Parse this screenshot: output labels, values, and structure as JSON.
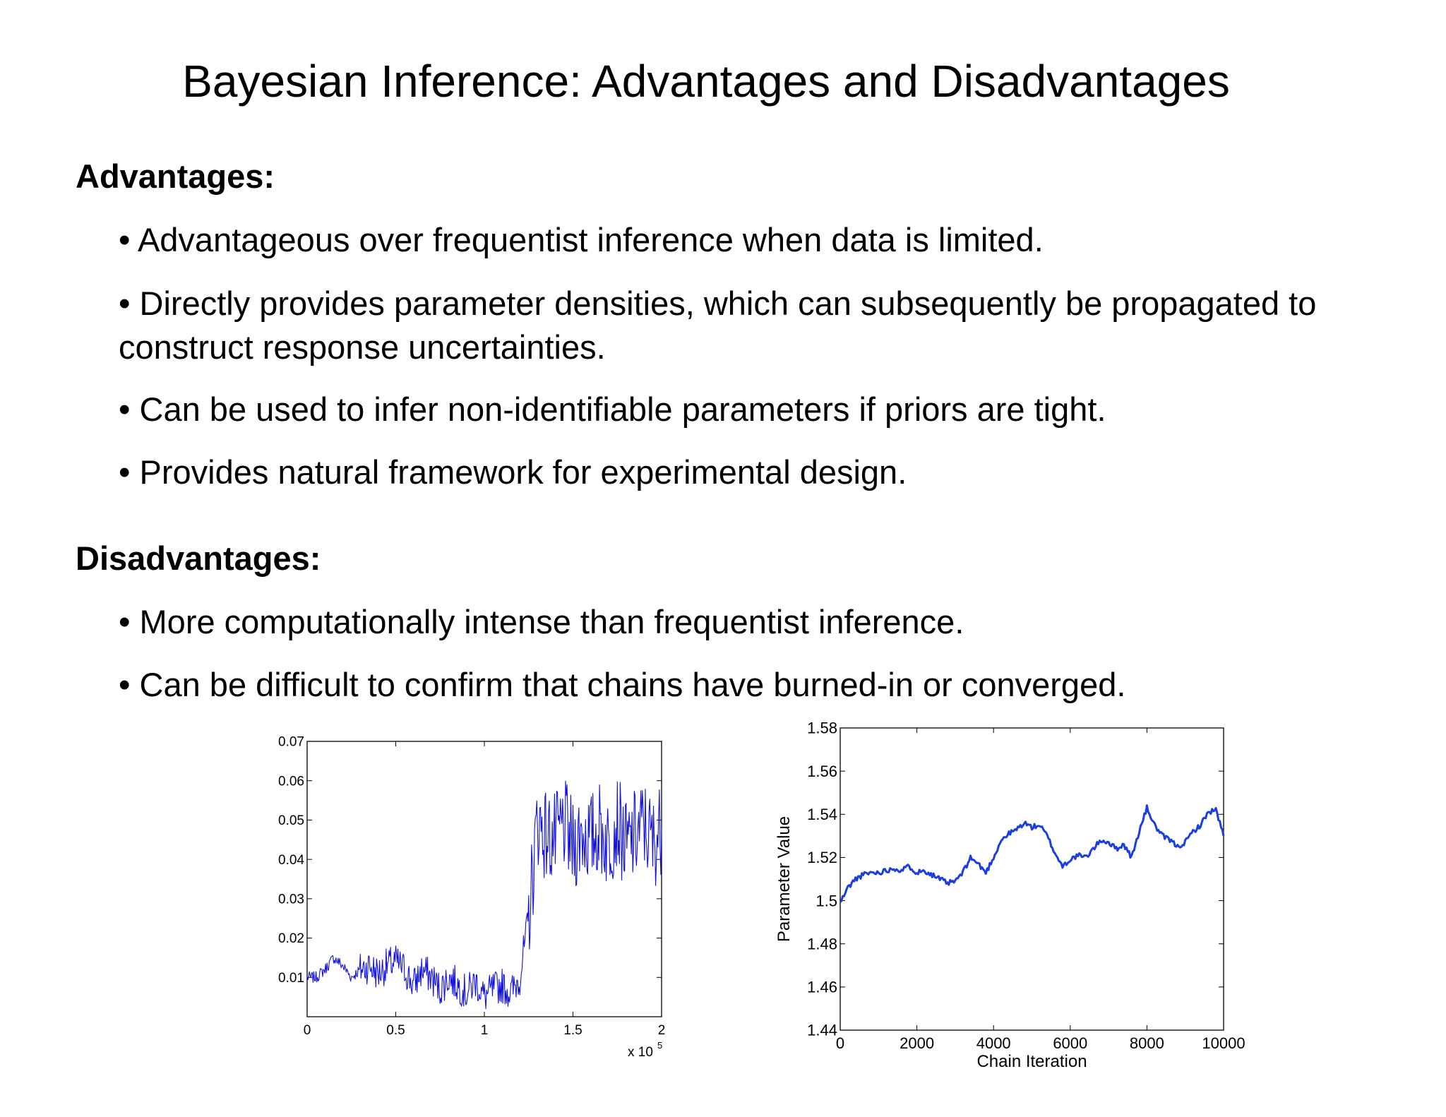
{
  "title": "Bayesian Inference: Advantages and Disadvantages",
  "advantages": {
    "heading": "Advantages:",
    "items": [
      "Advantageous over frequentist inference when data is limited.",
      "Directly provides parameter densities, which can subsequently be propagated to construct response uncertainties.",
      "Can be used to infer non-identifiable parameters if priors are tight.",
      "Provides natural framework for experimental design."
    ]
  },
  "disadvantages": {
    "heading": "Disadvantages:",
    "items": [
      "More computationally intense than frequentist inference.",
      "Can be difficult to confirm that chains have burned-in or converged."
    ]
  },
  "bullet_char": "•",
  "chart_data": [
    {
      "type": "line",
      "title": "",
      "xlabel": "",
      "ylabel": "",
      "x_multiplier_label": "x 10",
      "x_multiplier_exponent": "5",
      "xlim": [
        0,
        2
      ],
      "ylim": [
        0,
        0.07
      ],
      "x_ticks": [
        "0",
        "0.5",
        "1",
        "1.5",
        "2"
      ],
      "y_ticks": [
        "0.01",
        "0.02",
        "0.03",
        "0.04",
        "0.05",
        "0.06",
        "0.07"
      ],
      "line_color": "#1010e0",
      "series": [
        {
          "x": [
            0,
            0.05,
            0.1,
            0.15,
            0.2,
            0.25,
            0.3,
            0.35,
            0.4,
            0.45,
            0.5,
            0.55,
            0.6,
            0.65,
            0.7,
            0.75,
            0.8,
            0.85,
            0.9,
            0.95,
            1.0,
            1.05,
            1.1,
            1.15,
            1.2,
            1.25,
            1.3,
            1.35,
            1.4,
            1.45,
            1.5,
            1.55,
            1.6,
            1.65,
            1.7,
            1.75,
            1.8,
            1.85,
            1.9,
            1.95,
            2.0
          ],
          "values": [
            0.01,
            0.01,
            0.012,
            0.015,
            0.013,
            0.01,
            0.012,
            0.013,
            0.011,
            0.013,
            0.014,
            0.012,
            0.008,
            0.012,
            0.01,
            0.007,
            0.01,
            0.008,
            0.006,
            0.009,
            0.005,
            0.007,
            0.008,
            0.006,
            0.01,
            0.025,
            0.05,
            0.046,
            0.045,
            0.049,
            0.043,
            0.047,
            0.045,
            0.048,
            0.044,
            0.05,
            0.043,
            0.046,
            0.049,
            0.044,
            0.048
          ]
        }
      ]
    },
    {
      "type": "line",
      "title": "",
      "xlabel": "Chain Iteration",
      "ylabel": "Parameter Value",
      "xlim": [
        0,
        10000
      ],
      "ylim": [
        1.44,
        1.58
      ],
      "x_ticks": [
        "0",
        "2000",
        "4000",
        "6000",
        "8000",
        "10000"
      ],
      "y_ticks": [
        "1.44",
        "1.46",
        "1.48",
        "1.5",
        "1.52",
        "1.54",
        "1.56",
        "1.58"
      ],
      "line_color": "#1a3ee0",
      "series": [
        {
          "x": [
            0,
            200,
            400,
            600,
            800,
            1000,
            1200,
            1400,
            1600,
            1800,
            2000,
            2200,
            2400,
            2600,
            2800,
            3000,
            3200,
            3400,
            3600,
            3800,
            4000,
            4200,
            4400,
            4600,
            4800,
            5000,
            5200,
            5400,
            5600,
            5800,
            6000,
            6200,
            6400,
            6600,
            6800,
            7000,
            7200,
            7400,
            7600,
            7800,
            8000,
            8200,
            8400,
            8600,
            8800,
            9000,
            9200,
            9400,
            9600,
            9800,
            10000
          ],
          "values": [
            1.499,
            1.506,
            1.51,
            1.512,
            1.513,
            1.513,
            1.514,
            1.515,
            1.514,
            1.516,
            1.513,
            1.514,
            1.512,
            1.51,
            1.508,
            1.509,
            1.513,
            1.52,
            1.517,
            1.513,
            1.52,
            1.528,
            1.531,
            1.533,
            1.536,
            1.534,
            1.535,
            1.53,
            1.522,
            1.516,
            1.519,
            1.521,
            1.52,
            1.524,
            1.528,
            1.527,
            1.524,
            1.526,
            1.52,
            1.532,
            1.543,
            1.535,
            1.53,
            1.528,
            1.525,
            1.527,
            1.532,
            1.535,
            1.541,
            1.542,
            1.53
          ]
        }
      ]
    }
  ]
}
